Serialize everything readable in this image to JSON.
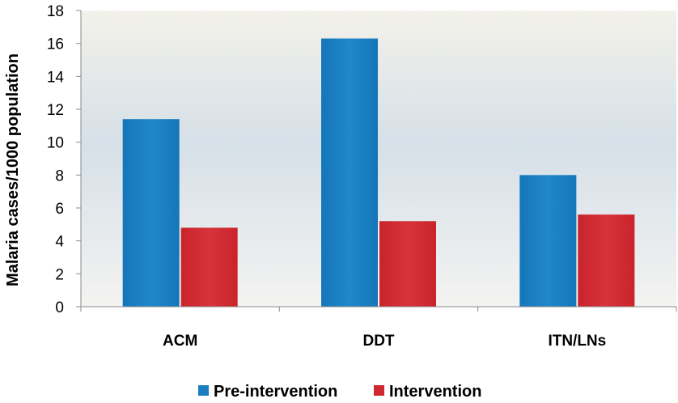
{
  "chart_data": {
    "type": "bar",
    "title": "",
    "xlabel": "",
    "ylabel": "Malaria cases/1000 population",
    "ylim": [
      0,
      18
    ],
    "yticks": [
      0,
      2,
      4,
      6,
      8,
      10,
      12,
      14,
      16,
      18
    ],
    "categories": [
      "ACM",
      "DDT",
      "ITN/LNs"
    ],
    "series": [
      {
        "name": "Pre-intervention",
        "values": [
          11.4,
          16.3,
          8.0
        ],
        "color": "#1a7fc1"
      },
      {
        "name": "Intervention",
        "values": [
          4.8,
          5.2,
          5.6
        ],
        "color": "#d1272e"
      }
    ],
    "legend_position": "bottom",
    "grid": false,
    "plot_background": "gradient-light-blue-to-beige"
  }
}
